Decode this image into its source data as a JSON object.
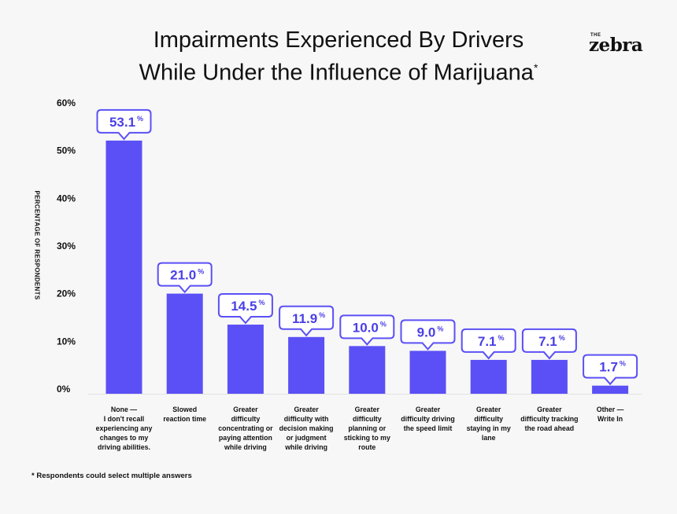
{
  "header": {
    "title_line1": "Impairments Experienced By Drivers",
    "title_line2": "While Under the Influence of Marijuana",
    "title_mark": "*",
    "logo_small": "THE",
    "logo_big": "zebra"
  },
  "footnote": "* Respondents could select multiple answers",
  "colors": {
    "bar": "#5b50f6",
    "callout_border": "#5b50f6",
    "callout_text": "#4a3fe6",
    "callout_fill": "#ffffff"
  },
  "chart_data": {
    "type": "bar",
    "title": "Impairments Experienced By Drivers While Under the Influence of Marijuana*",
    "xlabel": "",
    "ylabel": "PERCENTAGE OF RESPONDENTS",
    "ylim": [
      0,
      60
    ],
    "yticks": [
      0,
      10,
      20,
      30,
      40,
      50,
      60
    ],
    "ytick_labels": [
      "0%",
      "10%",
      "20%",
      "30%",
      "40%",
      "50%",
      "60%"
    ],
    "grid": false,
    "value_suffix": "%",
    "categories": [
      [
        "None —",
        "I don't recall",
        "experiencing any",
        "changes to my",
        "driving abilities."
      ],
      [
        "Slowed",
        "reaction time"
      ],
      [
        "Greater",
        "difficulty",
        "concentrating or",
        "paying attention",
        "while driving"
      ],
      [
        "Greater",
        "difficulty with",
        "decision making",
        "or judgment",
        "while driving"
      ],
      [
        "Greater",
        "difficulty",
        "planning or",
        "sticking to my",
        "route"
      ],
      [
        "Greater",
        "difficulty driving",
        "the speed limit"
      ],
      [
        "Greater",
        "difficulty",
        "staying in my",
        "lane"
      ],
      [
        "Greater",
        "difficulty tracking",
        "the road ahead"
      ],
      [
        "Other —",
        "Write In"
      ]
    ],
    "values": [
      53.1,
      21.0,
      14.5,
      11.9,
      10.0,
      9.0,
      7.1,
      7.1,
      1.7
    ],
    "data_labels": [
      "53.1",
      "21.0",
      "14.5",
      "11.9",
      "10.0",
      "9.0",
      "7.1",
      "7.1",
      "1.7"
    ]
  }
}
